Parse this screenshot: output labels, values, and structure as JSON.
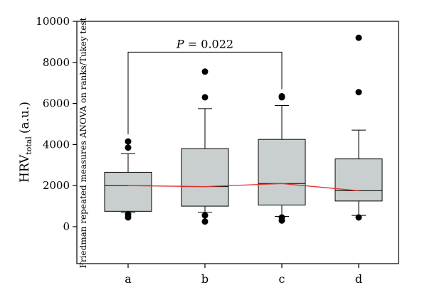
{
  "chart_data": {
    "type": "box",
    "ylabel": {
      "main": "HRV",
      "subscript": "total",
      "unit": "(a.u.)"
    },
    "annotation": "Friedman repeated measures ANOVA on ranks/Tukey test",
    "yticks": [
      0,
      2000,
      4000,
      6000,
      8000,
      10000
    ],
    "ytick_labels": [
      "0",
      "2000",
      "4000",
      "6000",
      "8000",
      "10000"
    ],
    "ylim": [
      -1800,
      10000
    ],
    "categories": [
      "a",
      "b",
      "c",
      "d"
    ],
    "boxes": [
      {
        "category": "a",
        "whisker_low": 700,
        "q1": 750,
        "median": 2000,
        "q3": 2650,
        "whisker_high": 3550,
        "outliers": [
          4150,
          3850,
          600,
          450
        ]
      },
      {
        "category": "b",
        "whisker_low": 700,
        "q1": 1000,
        "median": 1950,
        "q3": 3800,
        "whisker_high": 5750,
        "outliers": [
          7550,
          6300,
          550,
          250
        ]
      },
      {
        "category": "c",
        "whisker_low": 500,
        "q1": 1050,
        "median": 2100,
        "q3": 4250,
        "whisker_high": 5900,
        "outliers": [
          6350,
          6300,
          300,
          450
        ]
      },
      {
        "category": "d",
        "whisker_low": 550,
        "q1": 1250,
        "median": 1750,
        "q3": 3300,
        "whisker_high": 4700,
        "outliers": [
          9200,
          6550,
          450
        ]
      }
    ],
    "median_line": {
      "values": [
        2000,
        1950,
        2100,
        1750
      ],
      "color": "#e0302b"
    },
    "significance": {
      "from": "a",
      "to": "c",
      "label_italic": "P",
      "label_rest": " = 0.022",
      "bracket_y": 8500
    },
    "colors": {
      "box_fill": "#c8cfce",
      "median_line": "#e0302b"
    }
  }
}
